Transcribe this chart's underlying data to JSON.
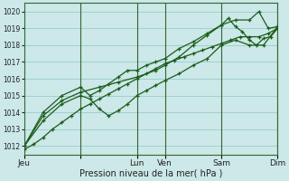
{
  "background_color": "#cce8e8",
  "grid_color": "#99cccc",
  "line_color": "#1a5c1a",
  "xlabel": "Pression niveau de la mer( hPa )",
  "ylim": [
    1011.5,
    1020.5
  ],
  "yticks": [
    1012,
    1013,
    1014,
    1015,
    1016,
    1017,
    1018,
    1019,
    1020
  ],
  "xlim": [
    0,
    216
  ],
  "day_positions": [
    0,
    48,
    96,
    120,
    168,
    216
  ],
  "day_labels": [
    "Jeu",
    "",
    "Lun",
    "Ven",
    "Sam",
    "Dim"
  ],
  "vline_positions": [
    48,
    96,
    120,
    168,
    216
  ],
  "series": [
    {
      "x": [
        0,
        8,
        16,
        24,
        32,
        40,
        48,
        56,
        64,
        72,
        80,
        88,
        96,
        104,
        112,
        120,
        128,
        136,
        144,
        152,
        160,
        168,
        176,
        184,
        192,
        200,
        208,
        216
      ],
      "y": [
        1011.8,
        1012.1,
        1012.5,
        1013.0,
        1013.4,
        1013.8,
        1014.2,
        1014.5,
        1014.8,
        1015.1,
        1015.4,
        1015.7,
        1016.0,
        1016.3,
        1016.6,
        1016.9,
        1017.1,
        1017.3,
        1017.5,
        1017.7,
        1017.9,
        1018.1,
        1018.3,
        1018.5,
        1018.5,
        1018.5,
        1018.7,
        1019.0
      ]
    },
    {
      "x": [
        0,
        16,
        32,
        48,
        56,
        64,
        72,
        80,
        88,
        96,
        104,
        112,
        120,
        132,
        144,
        156,
        168,
        180,
        192,
        204,
        216
      ],
      "y": [
        1012.0,
        1013.5,
        1014.5,
        1015.0,
        1014.8,
        1014.2,
        1013.8,
        1014.1,
        1014.5,
        1015.0,
        1015.3,
        1015.6,
        1015.9,
        1016.3,
        1016.8,
        1017.2,
        1018.0,
        1018.3,
        1018.0,
        1018.0,
        1019.1
      ]
    },
    {
      "x": [
        0,
        16,
        32,
        48,
        64,
        80,
        96,
        112,
        120,
        132,
        144,
        156,
        168,
        180,
        192,
        200,
        208,
        216
      ],
      "y": [
        1012.0,
        1013.8,
        1014.7,
        1015.2,
        1015.5,
        1015.8,
        1016.1,
        1016.5,
        1016.8,
        1017.3,
        1018.0,
        1018.6,
        1019.2,
        1019.5,
        1019.5,
        1020.0,
        1019.0,
        1019.1
      ]
    },
    {
      "x": [
        0,
        16,
        32,
        48,
        56,
        64,
        72,
        80,
        88,
        96,
        104,
        112,
        120,
        132,
        144,
        156,
        168,
        174,
        180,
        186,
        192,
        198,
        204,
        210,
        216
      ],
      "y": [
        1012.0,
        1014.0,
        1015.0,
        1015.5,
        1015.0,
        1015.3,
        1015.7,
        1016.1,
        1016.5,
        1016.5,
        1016.8,
        1017.0,
        1017.2,
        1017.8,
        1018.2,
        1018.7,
        1019.2,
        1019.6,
        1019.1,
        1018.8,
        1018.3,
        1018.0,
        1018.4,
        1018.5,
        1019.0
      ]
    }
  ]
}
